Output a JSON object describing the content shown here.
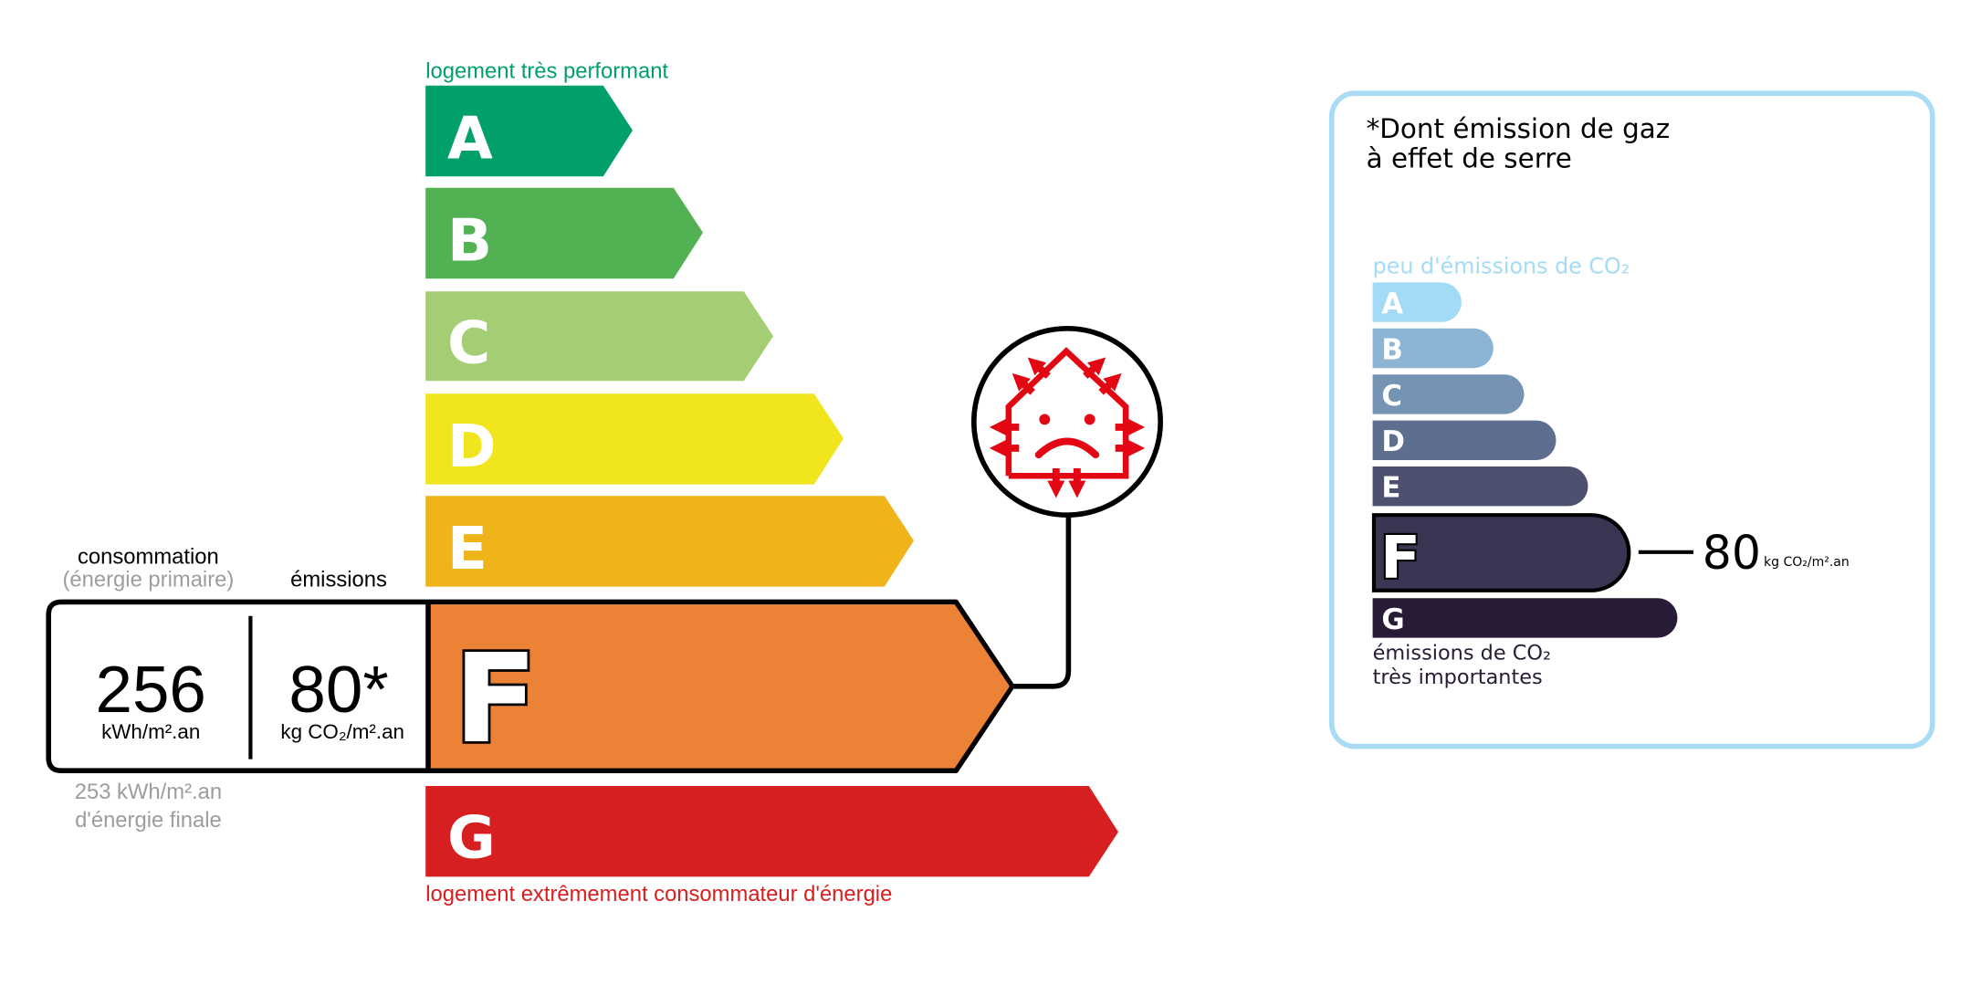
{
  "energy_scale": {
    "top_label": "logement très performant",
    "bottom_label": "logement extrêmement consommateur d'énergie",
    "classes": [
      {
        "letter": "A",
        "color": "#009f6b"
      },
      {
        "letter": "B",
        "color": "#52b153"
      },
      {
        "letter": "C",
        "color": "#a5cd74"
      },
      {
        "letter": "D",
        "color": "#f1e51d"
      },
      {
        "letter": "E",
        "color": "#f0b41b"
      },
      {
        "letter": "F",
        "color": "#eb8235"
      },
      {
        "letter": "G",
        "color": "#d71e20"
      }
    ],
    "current_class": "F",
    "consumption_label": "consommation",
    "consumption_sublabel": "(énergie primaire)",
    "emissions_label": "émissions",
    "consumption_value": "256",
    "consumption_unit": "kWh/m².an",
    "emissions_value": "80*",
    "emissions_unit": "kg CO₂/m².an",
    "final_energy_value": "253 kWh/m².an",
    "final_energy_label": "d'énergie finale",
    "icon": "passoire-thermique-house-icon",
    "icon_color": "#e30613"
  },
  "ghg_panel": {
    "title_line1": "*Dont émission de gaz",
    "title_line2": "à effet de serre",
    "top_label": "peu d'émissions de CO₂",
    "bottom_label_line1": "émissions de CO₂",
    "bottom_label_line2": "très importantes",
    "border_color": "#a8dcf5",
    "classes": [
      {
        "letter": "A",
        "color": "#a3dbf6"
      },
      {
        "letter": "B",
        "color": "#8cb4d5"
      },
      {
        "letter": "C",
        "color": "#7594b4"
      },
      {
        "letter": "D",
        "color": "#5e6e8f"
      },
      {
        "letter": "E",
        "color": "#4d506f"
      },
      {
        "letter": "F",
        "color": "#393552"
      },
      {
        "letter": "G",
        "color": "#281b35"
      }
    ],
    "current_class": "F",
    "value": "80",
    "unit": "kg CO₂/m².an"
  }
}
